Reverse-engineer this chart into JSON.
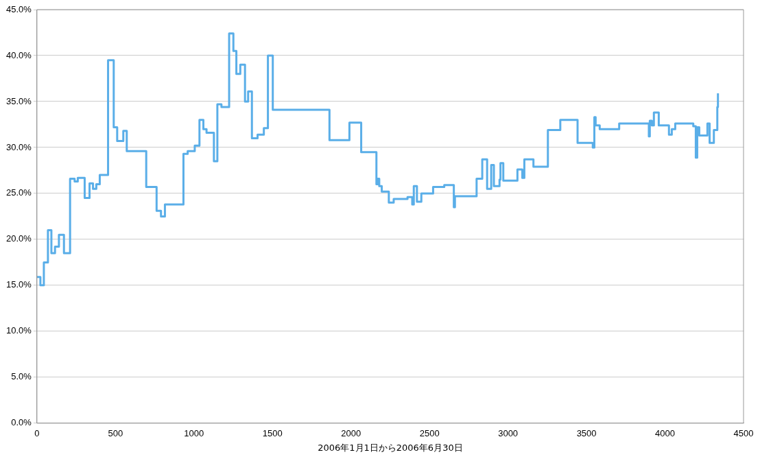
{
  "chart_data": {
    "type": "step",
    "xlabel": "2006年1月1日から2006年6月30日",
    "xlim": [
      0,
      4500
    ],
    "xticks": [
      0,
      500,
      1000,
      1500,
      2000,
      2500,
      3000,
      3500,
      4000,
      4500
    ],
    "ylim": [
      0,
      45
    ],
    "yticks": [
      {
        "value": 0,
        "label": "0.0%"
      },
      {
        "value": 5,
        "label": "5.0%"
      },
      {
        "value": 10,
        "label": "10.0%"
      },
      {
        "value": 15,
        "label": "15.0%"
      },
      {
        "value": 20,
        "label": "20.0%"
      },
      {
        "value": 25,
        "label": "25.0%"
      },
      {
        "value": 30,
        "label": "30.0%"
      },
      {
        "value": 35,
        "label": "35.0%"
      },
      {
        "value": 40,
        "label": "40.0%"
      },
      {
        "value": 45,
        "label": "45.0%"
      }
    ],
    "grid": "y",
    "legend": false,
    "marker": "none",
    "series": [
      {
        "color": "#5aaee8",
        "x": [
          0,
          22,
          44,
          70,
          92,
          115,
          140,
          172,
          211,
          240,
          260,
          304,
          335,
          357,
          378,
          400,
          453,
          489,
          511,
          550,
          572,
          696,
          762,
          790,
          815,
          933,
          960,
          1005,
          1035,
          1060,
          1080,
          1127,
          1149,
          1175,
          1224,
          1251,
          1270,
          1295,
          1325,
          1345,
          1369,
          1405,
          1445,
          1471,
          1502,
          1863,
          1990,
          2065,
          2162,
          2170,
          2180,
          2196,
          2241,
          2272,
          2360,
          2390,
          2400,
          2420,
          2448,
          2523,
          2594,
          2655,
          2662,
          2783,
          2800,
          2836,
          2867,
          2893,
          2910,
          2946,
          2952,
          2970,
          3060,
          3091,
          3104,
          3162,
          3254,
          3333,
          3443,
          3540,
          3550,
          3558,
          3584,
          3595,
          3708,
          3897,
          3903,
          3916,
          3929,
          3960,
          3973,
          4025,
          4043,
          4065,
          4148,
          4180,
          4196,
          4205,
          4218,
          4254,
          4270,
          4284,
          4311,
          4333,
          4337
        ],
        "values": [
          15.9,
          15.0,
          17.5,
          21.0,
          18.5,
          19.2,
          20.5,
          18.5,
          26.6,
          26.3,
          26.7,
          24.5,
          26.1,
          25.5,
          26.0,
          27.0,
          39.5,
          32.2,
          30.7,
          31.8,
          29.6,
          25.7,
          23.1,
          22.5,
          23.8,
          29.3,
          29.6,
          30.2,
          33.0,
          32.0,
          31.6,
          28.5,
          34.7,
          34.4,
          42.4,
          40.5,
          38.0,
          39.0,
          35.0,
          36.1,
          31.0,
          31.4,
          32.1,
          40.0,
          34.1,
          30.8,
          32.7,
          29.5,
          26.0,
          26.6,
          25.8,
          25.2,
          24.0,
          24.4,
          24.6,
          23.8,
          25.8,
          24.1,
          25.0,
          25.7,
          25.9,
          23.5,
          24.7,
          24.7,
          26.6,
          28.7,
          25.5,
          28.1,
          25.8,
          26.5,
          28.3,
          26.4,
          27.6,
          26.7,
          28.7,
          27.9,
          31.9,
          33.0,
          30.5,
          30.0,
          33.3,
          32.4,
          32.0,
          32.0,
          32.6,
          31.2,
          32.9,
          32.4,
          33.8,
          32.4,
          32.4,
          31.4,
          32.0,
          32.6,
          32.6,
          32.3,
          28.9,
          32.2,
          31.3,
          31.3,
          32.6,
          30.5,
          31.9,
          34.4,
          35.9
        ]
      }
    ]
  }
}
